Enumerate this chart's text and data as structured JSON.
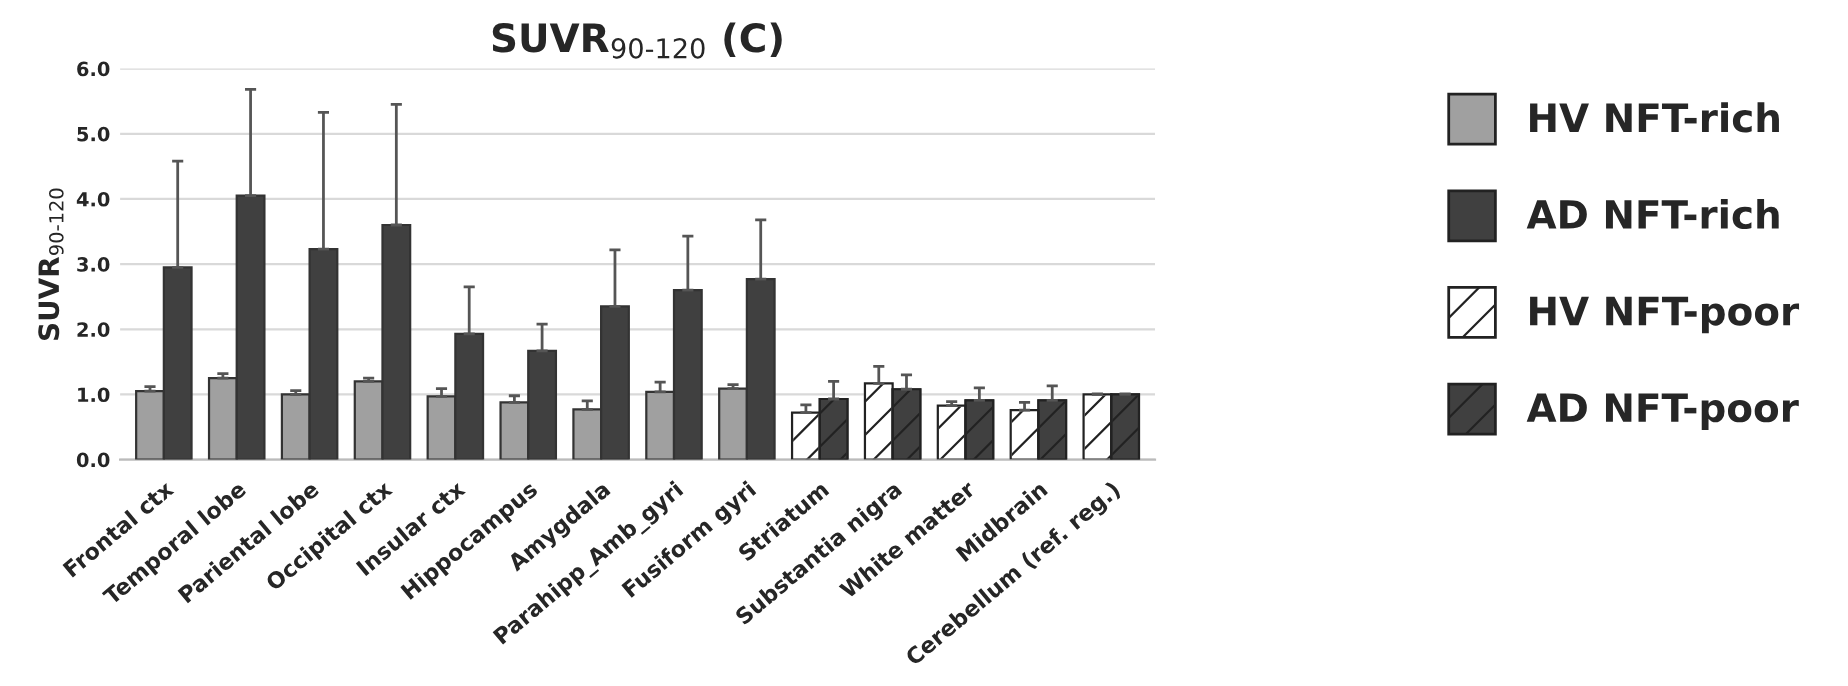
{
  "chart_data": {
    "type": "bar",
    "title": "SUVR$_{90-120}$ (C)",
    "ylabel": "SUVR$_{90-120}$",
    "categories": [
      "Frontal ctx",
      "Temporal lobe",
      "Pariental lobe",
      "Occipital ctx",
      "Insular ctx",
      "Hippocampus",
      "Amygdala",
      "Parahipp_Amb_gyri",
      "Fusiform gyri",
      "Striatum",
      "Substantia nigra",
      "White matter",
      "Midbrain",
      "Cerebellum (ref. reg.)"
    ],
    "series": [
      {
        "name": "HV NFT-rich",
        "color": "#a0a0a0",
        "values": [
          1.05,
          1.25,
          1.0,
          1.2,
          0.97,
          0.88,
          0.77,
          1.04,
          1.09,
          null,
          null,
          null,
          null,
          null
        ],
        "errors": [
          [
            1.05,
            1.12
          ],
          [
            1.25,
            1.32
          ],
          [
            1.0,
            1.06
          ],
          [
            1.2,
            1.25
          ],
          [
            0.97,
            1.09
          ],
          [
            0.88,
            0.98
          ],
          [
            0.77,
            0.9
          ],
          [
            1.04,
            1.19
          ],
          [
            1.09,
            1.15
          ],
          null,
          null,
          null,
          null,
          null
        ]
      },
      {
        "name": "AD NFT-rich",
        "color": "#404040",
        "values": [
          2.95,
          4.05,
          3.23,
          3.6,
          1.93,
          1.67,
          2.35,
          2.6,
          2.77,
          null,
          null,
          null,
          null,
          null
        ],
        "errors": [
          [
            2.95,
            4.58
          ],
          [
            4.05,
            5.68
          ],
          [
            3.23,
            5.33
          ],
          [
            3.6,
            5.45
          ],
          [
            1.93,
            2.65
          ],
          [
            1.67,
            2.08
          ],
          [
            2.35,
            3.22
          ],
          [
            2.6,
            3.43
          ],
          [
            2.77,
            3.68
          ],
          null,
          null,
          null,
          null,
          null
        ]
      },
      {
        "name": "HV NFT-poor",
        "color": "#ffffff",
        "values": [
          null,
          null,
          null,
          null,
          null,
          null,
          null,
          null,
          null,
          0.72,
          1.17,
          0.83,
          0.76,
          1.0
        ],
        "errors": [
          null,
          null,
          null,
          null,
          null,
          null,
          null,
          null,
          null,
          [
            0.72,
            0.84
          ],
          [
            1.17,
            1.43
          ],
          [
            0.83,
            0.89
          ],
          [
            0.76,
            0.88
          ],
          [
            1.0,
            1.01
          ]
        ]
      },
      {
        "name": "AD NFT-poor",
        "color": "#404040",
        "values": [
          null,
          null,
          null,
          null,
          null,
          null,
          null,
          null,
          null,
          0.93,
          1.08,
          0.91,
          0.91,
          1.0
        ],
        "errors": [
          null,
          null,
          null,
          null,
          null,
          null,
          null,
          null,
          null,
          [
            0.93,
            1.2
          ],
          [
            1.08,
            1.3
          ],
          [
            0.91,
            1.1
          ],
          [
            0.91,
            1.13
          ],
          [
            1.0,
            1.01
          ]
        ]
      }
    ],
    "ylim": [
      0,
      6
    ],
    "yticks": [
      {
        "value": 0,
        "label": "0.0"
      },
      {
        "value": 1,
        "label": "1.0"
      },
      {
        "value": 2,
        "label": "2.0"
      },
      {
        "value": 3,
        "label": "3.0"
      },
      {
        "value": 4,
        "label": "4.0"
      },
      {
        "value": 5,
        "label": "5.0"
      },
      {
        "value": 6,
        "label": "6.0"
      }
    ],
    "grid": "y",
    "legend": "right"
  }
}
